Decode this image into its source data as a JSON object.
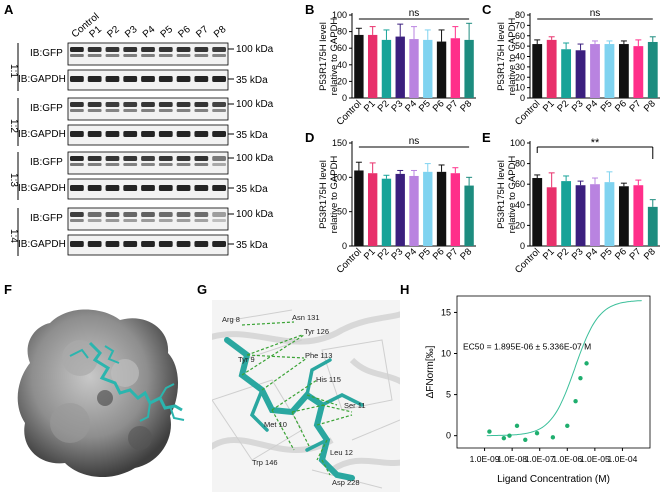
{
  "panel_labels": {
    "A": "A",
    "B": "B",
    "C": "C",
    "D": "D",
    "E": "E",
    "F": "F",
    "G": "G",
    "H": "H"
  },
  "blot": {
    "lanes": [
      "Control",
      "P1",
      "P2",
      "P3",
      "P4",
      "P5",
      "P6",
      "P7",
      "P8"
    ],
    "ratios": [
      "1:1",
      "1:2",
      "1:3",
      "1:4"
    ],
    "gfp_label": "IB:GFP",
    "gapdh_label": "IB:GAPDH",
    "mw_high": "100 kDa",
    "mw_low": "35 kDa",
    "gfp_intensity": [
      [
        0.85,
        0.8,
        0.78,
        0.8,
        0.8,
        0.78,
        0.8,
        0.78,
        0.75
      ],
      [
        0.8,
        0.78,
        0.75,
        0.75,
        0.78,
        0.78,
        0.78,
        0.78,
        0.72
      ],
      [
        0.85,
        0.8,
        0.78,
        0.78,
        0.75,
        0.78,
        0.78,
        0.8,
        0.5
      ],
      [
        0.75,
        0.55,
        0.62,
        0.58,
        0.6,
        0.55,
        0.58,
        0.55,
        0.35
      ]
    ]
  },
  "colors": {
    "Control": "#111111",
    "P1": "#e8306b",
    "P2": "#17a398",
    "P3": "#3b1f7e",
    "P4": "#b983e0",
    "P5": "#7fd3f0",
    "P6": "#111111",
    "P7": "#ff2f8a",
    "P8": "#1d8c7f"
  },
  "bar_ylabel_line1": "P53R175H level",
  "bar_ylabel_line2": "relative to GAPDH",
  "chart_data": [
    {
      "id": "B",
      "type": "bar",
      "categories": [
        "Control",
        "P1",
        "P2",
        "P3",
        "P4",
        "P5",
        "P6",
        "P7",
        "P8"
      ],
      "values": [
        76,
        76,
        70,
        74,
        71,
        70,
        68,
        72,
        70
      ],
      "errors": [
        8,
        10,
        12,
        15,
        15,
        12,
        14,
        14,
        20
      ],
      "ylim": [
        0,
        100
      ],
      "yticks": [
        0,
        20,
        40,
        60,
        80,
        100
      ],
      "significance": "ns",
      "ylabel": "P53R175H level relative to GAPDH"
    },
    {
      "id": "C",
      "type": "bar",
      "categories": [
        "Control",
        "P1",
        "P2",
        "P3",
        "P4",
        "P5",
        "P6",
        "P7",
        "P8"
      ],
      "values": [
        52,
        56,
        47,
        46,
        52,
        52,
        52,
        50,
        54
      ],
      "errors": [
        4,
        3,
        6,
        6,
        3,
        3,
        3,
        6,
        5
      ],
      "ylim": [
        0,
        80
      ],
      "yticks": [
        0,
        10,
        20,
        30,
        40,
        50,
        60,
        70,
        80
      ],
      "significance": "ns",
      "ylabel": "P53R175H level relative to GAPDH"
    },
    {
      "id": "D",
      "type": "bar",
      "categories": [
        "Control",
        "P1",
        "P2",
        "P3",
        "P4",
        "P5",
        "P6",
        "P7",
        "P8"
      ],
      "values": [
        110,
        106,
        98,
        105,
        102,
        108,
        108,
        106,
        88
      ],
      "errors": [
        12,
        15,
        5,
        5,
        8,
        12,
        10,
        8,
        12
      ],
      "ylim": [
        0,
        150
      ],
      "yticks": [
        0,
        50,
        100,
        150
      ],
      "significance": "ns",
      "ylabel": "P53R175H level relative to GAPDH"
    },
    {
      "id": "E",
      "type": "bar",
      "categories": [
        "Control",
        "P1",
        "P2",
        "P3",
        "P4",
        "P5",
        "P6",
        "P7",
        "P8"
      ],
      "values": [
        66,
        57,
        63,
        59,
        60,
        62,
        58,
        59,
        38
      ],
      "errors": [
        3,
        14,
        5,
        4,
        6,
        10,
        3,
        5,
        7
      ],
      "ylim": [
        0,
        100
      ],
      "yticks": [
        0,
        20,
        40,
        60,
        80,
        100
      ],
      "significance": "**",
      "ylabel": "P53R175H level relative to GAPDH"
    },
    {
      "id": "H",
      "type": "scatter",
      "title": "",
      "xlabel": "Ligand Concentration (M)",
      "ylabel": "ΔFNorm[‰]",
      "x": [
        1.5e-09,
        5e-09,
        8e-09,
        1.5e-08,
        3e-08,
        8e-08,
        3e-07,
        1e-06,
        2e-06,
        3e-06,
        5e-06
      ],
      "y": [
        0.5,
        -0.3,
        0,
        1.2,
        -0.5,
        0.3,
        -0.2,
        1.2,
        4.2,
        7,
        8.8
      ],
      "fit_ec50": 1.895e-06,
      "fit_bottom": 0,
      "fit_top": 16.5,
      "xlim": [
        1e-10,
        0.001
      ],
      "ylim": [
        -1.5,
        17
      ],
      "xticks": [
        "1.0E-09",
        "1.0E-08",
        "1.0E-07",
        "1.0E-06",
        "1.0E-05",
        "1.0E-04"
      ],
      "yticks": [
        0,
        5,
        10,
        15
      ],
      "annotation": "EC50 = 1.895E-06 ± 5.336E-07 M"
    }
  ],
  "structure_labels": [
    "Arg 8",
    "Asn 131",
    "Tyr 126",
    "Tyr 9",
    "Phe 113",
    "His 115",
    "Ser 11",
    "Met 10",
    "Leu 12",
    "Trp 146",
    "Asp 228"
  ]
}
